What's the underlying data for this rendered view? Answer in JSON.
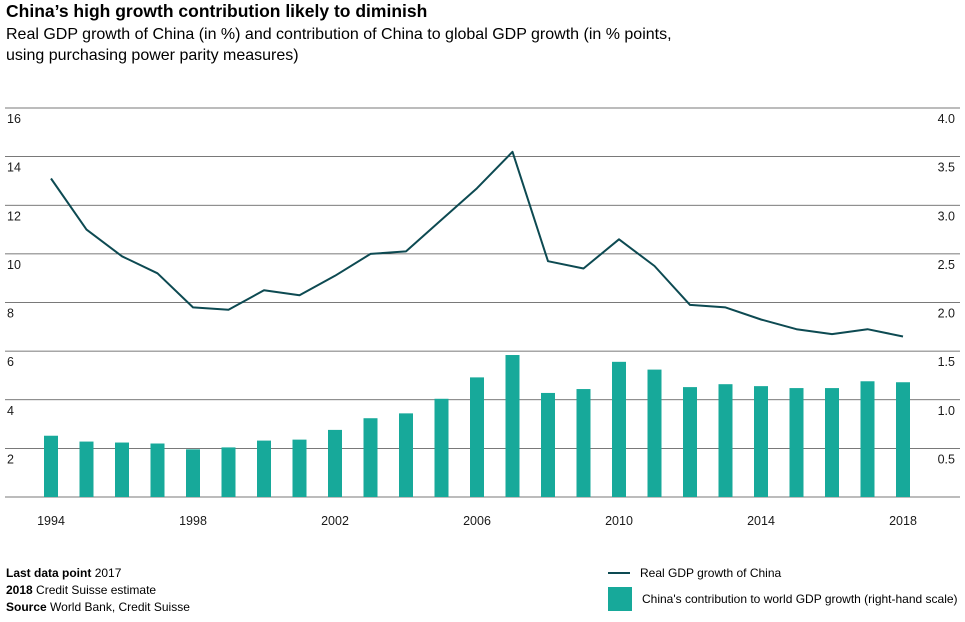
{
  "header": {
    "title": "China’s high growth contribution likely to diminish",
    "subtitle": "Real GDP growth of China (in %) and contribution of China to global GDP growth (in % points, using purchasing power parity measures)"
  },
  "notes": {
    "last_label": "Last data point",
    "last_value": "2017",
    "est_label": "2018",
    "est_value": "Credit Suisse estimate",
    "source_label": "Source",
    "source_value": "World Bank, Credit Suisse"
  },
  "legend": {
    "line_label": "Real GDP growth of China",
    "bar_label": "China's contribution to world GDP growth (right-hand scale)"
  },
  "colors": {
    "line": "#0d4a52",
    "bar": "#17a99a",
    "grid": "#4d4d4d"
  },
  "chart_data": {
    "type": "bar+line",
    "x": [
      1994,
      1995,
      1996,
      1997,
      1998,
      1999,
      2000,
      2001,
      2002,
      2003,
      2004,
      2005,
      2006,
      2007,
      2008,
      2009,
      2010,
      2011,
      2012,
      2013,
      2014,
      2015,
      2016,
      2017,
      2018
    ],
    "xticks": [
      "1994",
      "1998",
      "2002",
      "2006",
      "2010",
      "2014",
      "2018"
    ],
    "yticks_left": [
      "16",
      "14",
      "12",
      "10",
      "8",
      "6",
      "4",
      "2"
    ],
    "yticks_right": [
      "4.0",
      "3.5",
      "3.0",
      "2.5",
      "2.0",
      "1.5",
      "1.0",
      "0.5"
    ],
    "ylim_left": [
      0,
      16
    ],
    "ylim_right": [
      0,
      4.0
    ],
    "series": [
      {
        "name": "Real GDP growth of China",
        "kind": "line",
        "axis": "left",
        "values": [
          13.1,
          11.0,
          9.9,
          9.2,
          7.8,
          7.7,
          8.5,
          8.3,
          9.1,
          10.0,
          10.1,
          11.4,
          12.7,
          14.2,
          9.7,
          9.4,
          10.6,
          9.5,
          7.9,
          7.8,
          7.3,
          6.9,
          6.7,
          6.9,
          6.6
        ]
      },
      {
        "name": "China's contribution to world GDP growth",
        "kind": "bar",
        "axis": "right",
        "values": [
          0.63,
          0.57,
          0.56,
          0.55,
          0.49,
          0.51,
          0.58,
          0.59,
          0.69,
          0.81,
          0.86,
          1.01,
          1.23,
          1.46,
          1.07,
          1.11,
          1.39,
          1.31,
          1.13,
          1.16,
          1.14,
          1.12,
          1.12,
          1.19,
          1.18
        ]
      }
    ]
  }
}
